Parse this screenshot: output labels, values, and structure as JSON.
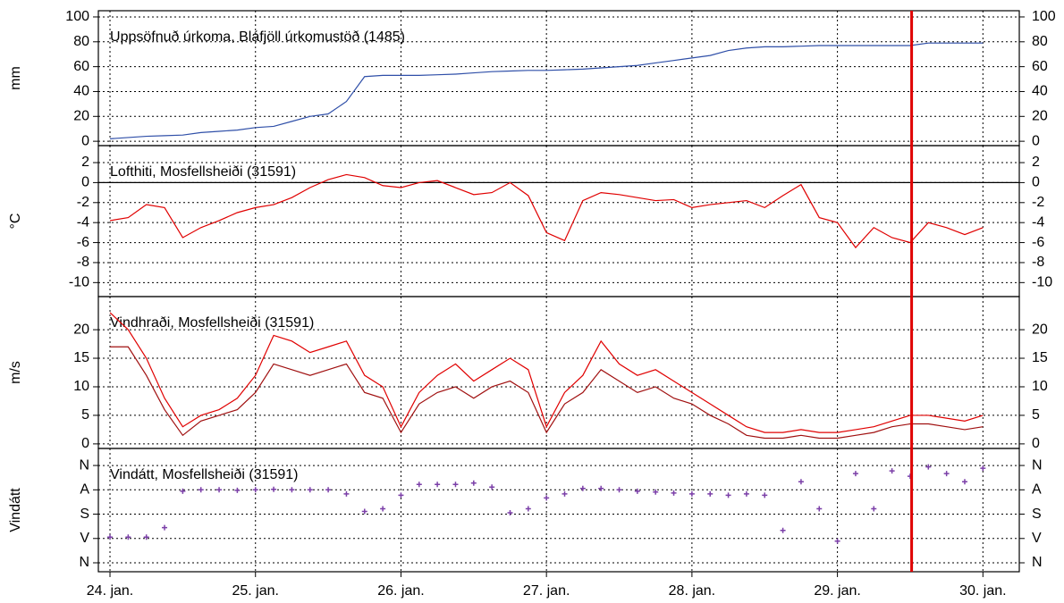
{
  "x_axis": {
    "xlim": [
      -0.08,
      6.25
    ],
    "xticks": [
      {
        "value": 0,
        "label": "24. jan."
      },
      {
        "value": 1,
        "label": "25. jan."
      },
      {
        "value": 2,
        "label": "26. jan."
      },
      {
        "value": 3,
        "label": "27. jan."
      },
      {
        "value": 4,
        "label": "28. jan."
      },
      {
        "value": 5,
        "label": "29. jan."
      },
      {
        "value": 6,
        "label": "30. jan."
      }
    ],
    "vline": {
      "x": 5.51,
      "color": "#e00000"
    }
  },
  "chart_data": [
    {
      "type": "line",
      "title": "Uppsöfnuð úrkoma, Bláfjöll úrkomustöð (1485)",
      "ylabel": "mm",
      "ylim": [
        -3.5,
        105
      ],
      "yticks": [
        0,
        20,
        40,
        60,
        80,
        100
      ],
      "x": [
        0,
        0.125,
        0.25,
        0.375,
        0.5,
        0.625,
        0.75,
        0.875,
        1,
        1.125,
        1.25,
        1.375,
        1.5,
        1.625,
        1.75,
        1.875,
        2,
        2.125,
        2.25,
        2.375,
        2.5,
        2.625,
        2.75,
        2.875,
        3,
        3.125,
        3.25,
        3.375,
        3.5,
        3.625,
        3.75,
        3.875,
        4,
        4.125,
        4.25,
        4.375,
        4.5,
        4.625,
        4.75,
        4.875,
        5,
        5.125,
        5.25,
        5.375,
        5.5,
        5.625,
        5.75,
        5.875,
        6
      ],
      "series": [
        {
          "color": "#2f4fa8",
          "values": [
            2,
            3,
            4,
            4.5,
            5,
            7,
            8,
            9,
            11,
            12,
            16,
            20,
            22,
            32,
            52,
            53,
            53,
            53,
            53.5,
            54,
            55,
            56,
            56.5,
            57,
            57,
            57.5,
            58,
            59,
            60,
            61,
            63,
            65,
            67,
            69,
            73,
            75,
            76,
            76,
            76.5,
            77,
            77,
            77,
            77,
            77,
            77,
            79,
            79,
            79,
            79
          ]
        }
      ]
    },
    {
      "type": "line",
      "title": "Lofthiti, Mosfellsheiði (31591)",
      "ylabel": "°C",
      "ylim": [
        -11.4,
        3.7
      ],
      "yticks": [
        2,
        0,
        -2,
        -4,
        -6,
        -8,
        -10
      ],
      "zeroline": true,
      "x": [
        0,
        0.125,
        0.25,
        0.375,
        0.5,
        0.625,
        0.75,
        0.875,
        1,
        1.125,
        1.25,
        1.375,
        1.5,
        1.625,
        1.75,
        1.875,
        2,
        2.125,
        2.25,
        2.375,
        2.5,
        2.625,
        2.75,
        2.875,
        3,
        3.125,
        3.25,
        3.375,
        3.5,
        3.625,
        3.75,
        3.875,
        4,
        4.125,
        4.25,
        4.375,
        4.5,
        4.625,
        4.75,
        4.875,
        5,
        5.125,
        5.25,
        5.375,
        5.5,
        5.625,
        5.75,
        5.875,
        6
      ],
      "series": [
        {
          "color": "#e00000",
          "values": [
            -3.8,
            -3.5,
            -2.2,
            -2.5,
            -5.5,
            -4.5,
            -3.8,
            -3,
            -2.5,
            -2.2,
            -1.5,
            -0.5,
            0.3,
            0.8,
            0.5,
            -0.3,
            -0.5,
            0,
            0.2,
            -0.5,
            -1.2,
            -1,
            0,
            -1.3,
            -5,
            -5.8,
            -1.8,
            -1,
            -1.2,
            -1.5,
            -1.8,
            -1.7,
            -2.5,
            -2.2,
            -2,
            -1.8,
            -2.5,
            -1.3,
            -0.2,
            -3.5,
            -4,
            -6.5,
            -4.5,
            -5.5,
            -6,
            -4,
            -4.5,
            -5.2,
            -4.5
          ]
        }
      ]
    },
    {
      "type": "line",
      "title": "Vindhraði, Mosfellsheiði (31591)",
      "ylabel": "m/s",
      "ylim": [
        -0.8,
        25.8
      ],
      "yticks": [
        0,
        5,
        10,
        15,
        20
      ],
      "x": [
        0,
        0.125,
        0.25,
        0.375,
        0.5,
        0.625,
        0.75,
        0.875,
        1,
        1.125,
        1.25,
        1.375,
        1.5,
        1.625,
        1.75,
        1.875,
        2,
        2.125,
        2.25,
        2.375,
        2.5,
        2.625,
        2.75,
        2.875,
        3,
        3.125,
        3.25,
        3.375,
        3.5,
        3.625,
        3.75,
        3.875,
        4,
        4.125,
        4.25,
        4.375,
        4.5,
        4.625,
        4.75,
        4.875,
        5,
        5.125,
        5.25,
        5.375,
        5.5,
        5.625,
        5.75,
        5.875,
        6
      ],
      "series": [
        {
          "color": "#e00000",
          "values": [
            23,
            20,
            15,
            8,
            3,
            5,
            6,
            8,
            12,
            19,
            18,
            16,
            17,
            18,
            12,
            10,
            3,
            9,
            12,
            14,
            11,
            13,
            15,
            13,
            3,
            9,
            12,
            18,
            14,
            12,
            13,
            11,
            9,
            7,
            5,
            3,
            2,
            2,
            2.5,
            2,
            2,
            2.5,
            3,
            4,
            5,
            5,
            4.5,
            4,
            5
          ]
        },
        {
          "color": "#a01010",
          "values": [
            17,
            17,
            12,
            6,
            1.5,
            4,
            5,
            6,
            9,
            14,
            13,
            12,
            13,
            14,
            9,
            8,
            2,
            7,
            9,
            10,
            8,
            10,
            11,
            9,
            2,
            7,
            9,
            13,
            11,
            9,
            10,
            8,
            7,
            5,
            3.5,
            1.5,
            1,
            1,
            1.5,
            1,
            1,
            1.5,
            2,
            3,
            3.5,
            3.5,
            3,
            2.5,
            3
          ]
        }
      ]
    },
    {
      "type": "scatter",
      "title": "Vindátt, Mosfellsheiði (31591)",
      "ylabel": "Vindátt",
      "ylim": [
        -33,
        423
      ],
      "yticks": [
        {
          "value": 360,
          "label": "N"
        },
        {
          "value": 270,
          "label": "A"
        },
        {
          "value": 180,
          "label": "S"
        },
        {
          "value": 90,
          "label": "V"
        },
        {
          "value": 0,
          "label": "N"
        }
      ],
      "x": [
        0,
        0.125,
        0.25,
        0.375,
        0.5,
        0.625,
        0.75,
        0.875,
        1,
        1.125,
        1.25,
        1.375,
        1.5,
        1.625,
        1.75,
        1.875,
        2,
        2.125,
        2.25,
        2.375,
        2.5,
        2.625,
        2.75,
        2.875,
        3,
        3.125,
        3.25,
        3.375,
        3.5,
        3.625,
        3.75,
        3.875,
        4,
        4.125,
        4.25,
        4.375,
        4.5,
        4.625,
        4.75,
        4.875,
        5,
        5.125,
        5.25,
        5.375,
        5.5,
        5.625,
        5.75,
        5.875,
        6
      ],
      "series": [
        {
          "color": "#7b3fa8",
          "values": [
            95,
            95,
            95,
            130,
            265,
            270,
            270,
            268,
            270,
            272,
            270,
            270,
            270,
            255,
            190,
            200,
            250,
            290,
            290,
            290,
            295,
            280,
            185,
            200,
            240,
            255,
            275,
            275,
            270,
            265,
            262,
            258,
            255,
            255,
            250,
            255,
            250,
            120,
            300,
            200,
            80,
            330,
            200,
            340,
            320,
            355,
            330,
            300,
            350
          ]
        }
      ]
    }
  ]
}
